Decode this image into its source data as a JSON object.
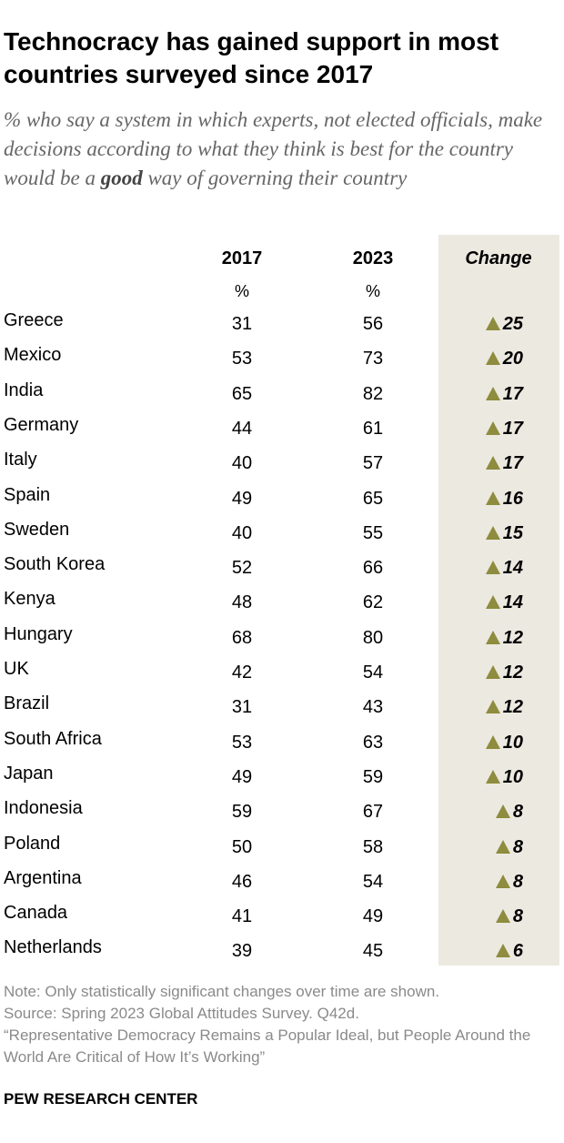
{
  "header": {
    "title": "Technocracy has gained support in most countries surveyed since 2017",
    "subtitle": {
      "before": "% who say a system in which experts, not elected officials, make decisions according to what they think is best for the country would be a ",
      "bold": "good",
      "after": " way of governing their country"
    }
  },
  "table": {
    "columns": [
      "2017",
      "2023",
      "Change"
    ],
    "units": [
      "%",
      "%"
    ],
    "rows": [
      [
        "Greece",
        31,
        56,
        25
      ],
      [
        "Mexico",
        53,
        73,
        20
      ],
      [
        "India",
        65,
        82,
        17
      ],
      [
        "Germany",
        44,
        61,
        17
      ],
      [
        "Italy",
        40,
        57,
        17
      ],
      [
        "Spain",
        49,
        65,
        16
      ],
      [
        "Sweden",
        40,
        55,
        15
      ],
      [
        "South Korea",
        52,
        66,
        14
      ],
      [
        "Kenya",
        48,
        62,
        14
      ],
      [
        "Hungary",
        68,
        80,
        12
      ],
      [
        "UK",
        42,
        54,
        12
      ],
      [
        "Brazil",
        31,
        43,
        12
      ],
      [
        "South Africa",
        53,
        63,
        10
      ],
      [
        "Japan",
        49,
        59,
        10
      ],
      [
        "Indonesia",
        59,
        67,
        8
      ],
      [
        "Poland",
        50,
        58,
        8
      ],
      [
        "Argentina",
        46,
        54,
        8
      ],
      [
        "Canada",
        41,
        49,
        8
      ],
      [
        "Netherlands",
        39,
        45,
        6
      ]
    ]
  },
  "notes": [
    "Note: Only statistically significant changes over time are shown.",
    "Source: Spring 2023 Global Attitudes Survey. Q42d.",
    "“Representative Democracy Remains a Popular Ideal, but People Around the World Are Critical of How It’s Working”"
  ],
  "footer": "PEW RESEARCH CENTER"
}
